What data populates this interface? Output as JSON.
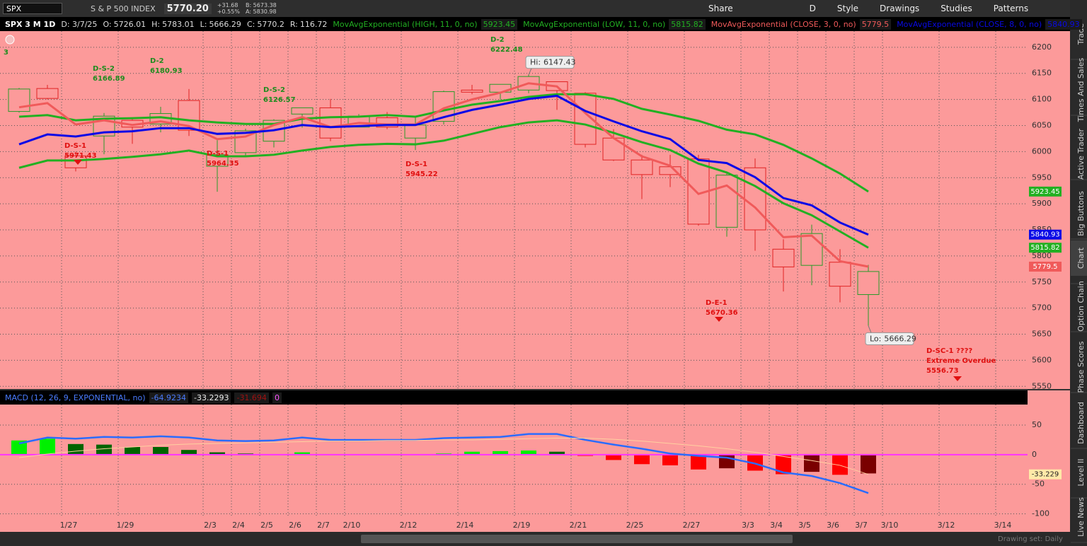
{
  "toolbar": {
    "symbol": "SPX",
    "description": "S & P 500 INDEX",
    "last": "5770.20",
    "change": "+31.68",
    "change_pct": "+0.55%",
    "bid": "B: 5673.38",
    "ask": "A: 5830.98",
    "buttons": [
      "Share",
      "D",
      "Style",
      "Drawings",
      "Studies",
      "Patterns"
    ]
  },
  "chart_data": [
    {
      "type": "candlestick",
      "title": "SPX 3 M 1D",
      "date": "D: 3/7/25",
      "ohlc_labels": [
        "O:",
        "H:",
        "L:",
        "C:"
      ],
      "range": {
        "label": "R:",
        "value": 116.72
      },
      "open": [
        6077,
        6121,
        5992,
        6030,
        6060,
        6053,
        6098,
        5972,
        5998,
        6020,
        6072,
        6084,
        6047,
        6065,
        6026,
        6058,
        6118,
        6114,
        6118,
        6134,
        6112,
        6026,
        5984,
        5971,
        5986,
        5855,
        5969,
        5813,
        5782,
        5788,
        5726.01
      ],
      "high": [
        6122,
        6128,
        6000,
        6074,
        6064,
        6086,
        6120,
        6022,
        6044,
        6062,
        6084,
        6101,
        6072,
        6076,
        6066,
        6117,
        6128,
        6129,
        6147.43,
        6134,
        6114,
        6043,
        5994,
        5994,
        5994,
        5959,
        5987,
        5832,
        5860,
        5813,
        5783.01
      ],
      "low": [
        6075,
        6100,
        5962,
        5995,
        6015,
        6037,
        6030,
        5923,
        5990,
        6008,
        6046,
        6020,
        6048,
        6043,
        6003,
        6052,
        6110,
        6100,
        6112,
        6080,
        6008,
        5982,
        5909,
        5932,
        5858,
        5837,
        5810,
        5732,
        5744,
        5711,
        5666.29
      ],
      "close": [
        6120,
        6102,
        5969,
        6068,
        6047,
        6073,
        6041,
        5994,
        6040,
        6060,
        6084,
        6026,
        6068,
        6047,
        6051,
        6115,
        6114,
        6129,
        6144,
        6117,
        6014,
        5984,
        5956,
        5956,
        5861,
        5955,
        5850,
        5779,
        5843,
        5742,
        5770.2
      ],
      "up_color": "#2a9a2a",
      "down_color": "#e02424",
      "series": [
        {
          "name": "MovAvgExponential (HIGH, 11, 0, no)",
          "color": "#22b022",
          "values": [
            6067,
            6070,
            6060,
            6063,
            6064,
            6066,
            6060,
            6056,
            6053,
            6053,
            6063,
            6066,
            6067,
            6070,
            6067,
            6079,
            6090,
            6097,
            6105,
            6110,
            6110,
            6101,
            6082,
            6071,
            6059,
            6042,
            6033,
            6013,
            5987,
            5958,
            5923.45
          ]
        },
        {
          "name": "MovAvgExponential (LOW, 11, 0, no)",
          "color": "#22b022",
          "values": [
            5969,
            5983,
            5983,
            5986,
            5990,
            5995,
            6002,
            5991,
            5991,
            5994,
            6002,
            6009,
            6013,
            6015,
            6014,
            6021,
            6034,
            6047,
            6056,
            6060,
            6052,
            6036,
            6018,
            6003,
            5977,
            5960,
            5934,
            5901,
            5878,
            5847,
            5815.82
          ]
        },
        {
          "name": "MovAvgExponential (CLOSE, 3, 0, no)",
          "color": "#f05a5a",
          "values": [
            6085,
            6093,
            6052,
            6060,
            6051,
            6058,
            6049,
            6024,
            6029,
            6051,
            6066,
            6047,
            6055,
            6052,
            6052,
            6083,
            6100,
            6113,
            6131,
            6125,
            6074,
            6026,
            5991,
            5973,
            5919,
            5935,
            5893,
            5836,
            5839,
            5790,
            5779.5
          ]
        },
        {
          "name": "MovAvgExponential (CLOSE, 8, 0, no)",
          "color": "#0a0ae6",
          "values": [
            6014,
            6033,
            6029,
            6037,
            6039,
            6045,
            6045,
            6034,
            6036,
            6041,
            6051,
            6047,
            6049,
            6051,
            6051,
            6066,
            6080,
            6090,
            6101,
            6107,
            6078,
            6058,
            6039,
            6024,
            5984,
            5978,
            5951,
            5911,
            5897,
            5864,
            5840.93
          ]
        }
      ],
      "hi": {
        "label": "Hi:",
        "value": 6147.43
      },
      "lo": {
        "label": "Lo:",
        "value": 5666.29
      },
      "annotations": [
        {
          "lines": [
            "3"
          ],
          "color": "#1e8c1e"
        },
        {
          "lines": [
            "D-S-2"
          ],
          "value": 6166.89,
          "color": "#1e8c1e"
        },
        {
          "lines": [
            "D-2"
          ],
          "value": 6180.93,
          "color": "#1e8c1e"
        },
        {
          "lines": [
            "D-S-2"
          ],
          "value": 6126.57,
          "color": "#1e8c1e"
        },
        {
          "lines": [
            "D-2"
          ],
          "value": 6222.48,
          "color": "#1e8c1e"
        },
        {
          "lines": [
            "D-S-1"
          ],
          "value": 5971.43,
          "color": "#e01010"
        },
        {
          "lines": [
            "D-S-1"
          ],
          "value": 5964.35,
          "color": "#e01010"
        },
        {
          "lines": [
            "D-S-1"
          ],
          "value": 5945.22,
          "color": "#e01010"
        },
        {
          "lines": [
            "D-E-1"
          ],
          "value": 5670.36,
          "color": "#e01010"
        },
        {
          "lines": [
            "D-SC-1 ????",
            "Extreme Overdue"
          ],
          "value": 5556.73,
          "color": "#e01010"
        }
      ],
      "xlim": [
        -0.675,
        35.625
      ],
      "ylim": [
        5545,
        6231
      ],
      "yticks": [
        5550,
        5600,
        5650,
        5700,
        5750,
        5800,
        5850,
        5900,
        5950,
        6000,
        6050,
        6100,
        6150,
        6200
      ],
      "xticks": [
        {
          "value": 2,
          "label": "1/27"
        },
        {
          "value": 4,
          "label": "1/29"
        },
        {
          "value": 7,
          "label": "2/3"
        },
        {
          "value": 8,
          "label": "2/4"
        },
        {
          "value": 9,
          "label": "2/5"
        },
        {
          "value": 10,
          "label": "2/6"
        },
        {
          "value": 11,
          "label": "2/7"
        },
        {
          "value": 12,
          "label": "2/10"
        },
        {
          "value": 14,
          "label": "2/12"
        },
        {
          "value": 16,
          "label": "2/14"
        },
        {
          "value": 18,
          "label": "2/19"
        },
        {
          "value": 20,
          "label": "2/21"
        },
        {
          "value": 22,
          "label": "2/25"
        },
        {
          "value": 24,
          "label": "2/27"
        },
        {
          "value": 26,
          "label": "3/3"
        },
        {
          "value": 27,
          "label": "3/4"
        },
        {
          "value": 28,
          "label": "3/5"
        },
        {
          "value": 29,
          "label": "3/6"
        },
        {
          "value": 30,
          "label": "3/7"
        },
        {
          "value": 31,
          "label": "3/10"
        },
        {
          "value": 33,
          "label": "3/12"
        },
        {
          "value": 35,
          "label": "3/14"
        }
      ],
      "grid": true
    },
    {
      "type": "macd",
      "title": "MACD (12, 26, 9, EXPONENTIAL, no)",
      "series": [
        {
          "color": "#2a6cff",
          "values": [
            19,
            29,
            27,
            30,
            29,
            31,
            29,
            24,
            23,
            24,
            29,
            25,
            25,
            25,
            25,
            28,
            29,
            30,
            35,
            35,
            25,
            17,
            10,
            2,
            -2,
            -5,
            -15,
            -30,
            -36,
            -48,
            -64.9234
          ]
        },
        {
          "color": "#ffd0a0",
          "values": [
            -5,
            1,
            6,
            10,
            13,
            16,
            18,
            19,
            20,
            21,
            22,
            23,
            23,
            24,
            24,
            25,
            25,
            26,
            27,
            28,
            28,
            26,
            23,
            19,
            15,
            10,
            4,
            -3,
            -10,
            -18,
            -33.2293
          ]
        }
      ],
      "histogram": {
        "values": [
          24,
          27,
          18,
          17,
          13,
          13,
          8,
          4,
          2,
          1,
          4,
          1,
          0.5,
          0.3,
          0,
          2,
          5,
          6,
          7,
          5,
          -2,
          -9,
          -16,
          -18,
          -25,
          -23,
          -27,
          -33,
          -29,
          -34,
          -31.694
        ],
        "colors": {
          "up_rising": "#00f000",
          "up_falling": "#006400",
          "down_falling": "#ff0000",
          "down_rising": "#7a0000"
        }
      },
      "zero_line": 0,
      "zero_color": "#ff33ff",
      "signal_badge": {
        "value": -33.2293,
        "label": "-33.229"
      },
      "ylim": [
        -106.5,
        84.7
      ],
      "yticks": [
        -100,
        -50,
        0,
        50
      ],
      "grid": true
    }
  ],
  "sidebar_tabs": [
    "Trade",
    "Times And Sales",
    "Active Trader",
    "Big Buttons",
    "Chart",
    "Option Chain",
    "Phase Scores",
    "Dashboard",
    "Level II",
    "Live News"
  ],
  "footer": {
    "drawing_set": "Drawing set: Daily"
  }
}
